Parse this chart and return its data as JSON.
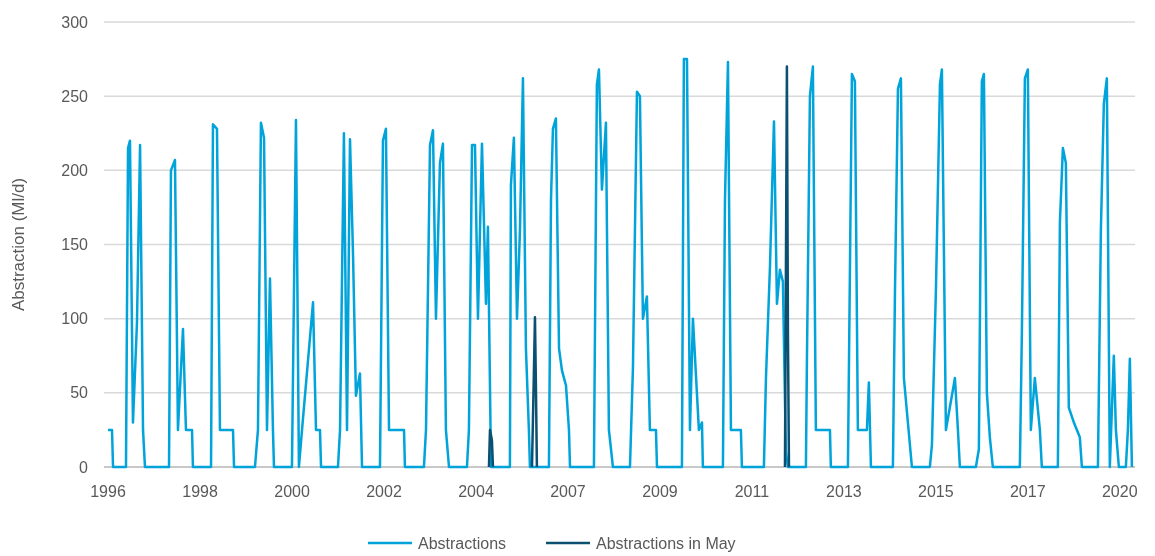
{
  "chart_data": {
    "type": "line",
    "ylabel": "Abstraction (Ml/d)",
    "ylim": [
      0,
      300
    ],
    "yticks": [
      0,
      50,
      100,
      150,
      200,
      250,
      300
    ],
    "xlim": [
      "1995-11-27",
      "2020-07-25"
    ],
    "xticks": [
      {
        "value": "1996-01-01",
        "label": "1996"
      },
      {
        "value": "1998-03-15",
        "label": "1998"
      },
      {
        "value": "2000-05-27",
        "label": "2000"
      },
      {
        "value": "2002-08-08",
        "label": "2002"
      },
      {
        "value": "2004-10-20",
        "label": "2004"
      },
      {
        "value": "2007-01-01",
        "label": "2007"
      },
      {
        "value": "2009-03-15",
        "label": "2009"
      },
      {
        "value": "2011-05-27",
        "label": "2011"
      },
      {
        "value": "2013-08-08",
        "label": "2013"
      },
      {
        "value": "2015-10-20",
        "label": "2015"
      },
      {
        "value": "2017-12-31",
        "label": "2017"
      },
      {
        "value": "2020-03-14",
        "label": "2020"
      }
    ],
    "grid": "y",
    "legend": "bottom",
    "line_style": "solid",
    "marker": "none",
    "series": [
      {
        "name": "Abstractions",
        "color": "#00a3da",
        "x": [
          "1996-01-01",
          "1996-02-05",
          "1996-02-14",
          "1996-06-06",
          "1996-06-24",
          "1996-07-11",
          "1996-08-06",
          "1996-09-10",
          "1996-10-07",
          "1996-11-02",
          "1996-11-19",
          "1997-06-17",
          "1997-07-04",
          "1997-08-08",
          "1997-09-03",
          "1997-10-17",
          "1997-11-12",
          "1998-01-04",
          "1998-01-12",
          "1998-06-19",
          "1998-07-06",
          "1998-08-10",
          "1998-09-05",
          "1998-12-28",
          "1999-01-06",
          "1999-07-08",
          "1999-08-03",
          "1999-08-29",
          "1999-09-25",
          "1999-10-21",
          "1999-11-16",
          "1999-12-12",
          "1999-12-21",
          "2000-05-26",
          "2000-06-30",
          "2000-07-26",
          "2000-08-22",
          "2000-11-26",
          "2000-12-22",
          "2001-01-26",
          "2001-02-04",
          "2001-07-02",
          "2001-07-20",
          "2001-08-23",
          "2001-09-19",
          "2001-10-15",
          "2001-11-10",
          "2001-12-06",
          "2002-01-10",
          "2002-01-28",
          "2002-07-04",
          "2002-07-30",
          "2002-08-25",
          "2002-09-21",
          "2003-01-30",
          "2003-02-07",
          "2003-07-23",
          "2003-08-10",
          "2003-09-14",
          "2003-10-10",
          "2003-11-05",
          "2003-12-10",
          "2004-01-05",
          "2004-01-31",
          "2004-02-27",
          "2004-08-02",
          "2004-08-19",
          "2004-09-15",
          "2004-10-11",
          "2004-11-06",
          "2004-12-11",
          "2005-01-15",
          "2005-02-01",
          "2005-02-28",
          "2005-08-12",
          "2005-08-21",
          "2005-09-16",
          "2005-10-13",
          "2005-11-08",
          "2005-12-04",
          "2005-12-30",
          "2006-01-25",
          "2006-02-03",
          "2006-07-19",
          "2006-08-06",
          "2006-08-23",
          "2006-09-18",
          "2006-10-15",
          "2006-11-10",
          "2006-12-15",
          "2007-01-10",
          "2007-01-19",
          "2007-08-16",
          "2007-09-11",
          "2007-09-29",
          "2007-10-25",
          "2007-11-29",
          "2007-12-25",
          "2008-01-29",
          "2008-06-26",
          "2008-07-22",
          "2008-08-26",
          "2008-09-21",
          "2008-10-17",
          "2008-11-21",
          "2008-12-17",
          "2009-02-08",
          "2009-02-17",
          "2009-09-23",
          "2009-10-10",
          "2009-11-06",
          "2009-12-02",
          "2009-12-28",
          "2010-02-18",
          "2010-03-17",
          "2010-03-25",
          "2010-09-16",
          "2010-10-04",
          "2010-10-30",
          "2010-11-25",
          "2011-02-20",
          "2011-03-01",
          "2011-09-09",
          "2011-09-27",
          "2011-11-01",
          "2011-12-06",
          "2012-01-01",
          "2012-01-27",
          "2012-02-22",
          "2012-03-19",
          "2012-04-06",
          "2012-09-10",
          "2012-09-19",
          "2012-10-15",
          "2012-11-10",
          "2012-12-06",
          "2013-04-08",
          "2013-04-16",
          "2013-09-12",
          "2013-10-17",
          "2013-11-12",
          "2013-12-08",
          "2014-02-25",
          "2014-03-14",
          "2014-04-01",
          "2014-10-10",
          "2014-10-28",
          "2014-11-23",
          "2014-12-19",
          "2015-01-14",
          "2015-02-18",
          "2015-03-25",
          "2015-08-29",
          "2015-09-16",
          "2015-10-21",
          "2015-11-25",
          "2015-12-12",
          "2016-01-16",
          "2016-04-04",
          "2016-04-30",
          "2016-05-17",
          "2016-10-04",
          "2016-10-30",
          "2016-11-25",
          "2016-12-13",
          "2017-01-08",
          "2017-02-03",
          "2017-03-01",
          "2017-10-23",
          "2017-11-10",
          "2017-12-06",
          "2018-01-01",
          "2018-01-27",
          "2018-03-03",
          "2018-04-16",
          "2018-05-03",
          "2018-09-20",
          "2018-10-08",
          "2018-11-03",
          "2018-11-29",
          "2018-12-25",
          "2019-02-07",
          "2019-03-31",
          "2019-04-18",
          "2019-09-05",
          "2019-10-01",
          "2019-10-27",
          "2019-11-22",
          "2019-12-18",
          "2020-01-22",
          "2020-02-09",
          "2020-03-06",
          "2020-05-06",
          "2020-05-24",
          "2020-06-10",
          "2020-06-28"
        ],
        "values": [
          25,
          25,
          0,
          0,
          215,
          220,
          30,
          97,
          217,
          25,
          0,
          0,
          200,
          207,
          25,
          93,
          25,
          25,
          0,
          0,
          231,
          228,
          25,
          25,
          0,
          0,
          25,
          232,
          222,
          25,
          127,
          25,
          0,
          0,
          234,
          0,
          25,
          111,
          25,
          25,
          0,
          0,
          25,
          225,
          25,
          221,
          145,
          48,
          63,
          0,
          0,
          220,
          228,
          25,
          25,
          0,
          0,
          25,
          217,
          227,
          100,
          205,
          218,
          25,
          0,
          0,
          25,
          217,
          217,
          100,
          218,
          110,
          162,
          0,
          0,
          190,
          222,
          100,
          160,
          262,
          80,
          25,
          0,
          0,
          180,
          228,
          235,
          80,
          65,
          55,
          25,
          0,
          0,
          258,
          268,
          187,
          232,
          25,
          0,
          0,
          67,
          253,
          250,
          100,
          115,
          25,
          25,
          0,
          0,
          275,
          275,
          25,
          100,
          25,
          30,
          0,
          0,
          180,
          273,
          25,
          25,
          0,
          0,
          60,
          135,
          233,
          110,
          133,
          125,
          10,
          0,
          0,
          73,
          250,
          270,
          25,
          25,
          0,
          0,
          265,
          260,
          25,
          25,
          57,
          0,
          0,
          118,
          255,
          262,
          60,
          30,
          0,
          0,
          15,
          120,
          258,
          268,
          25,
          60,
          25,
          0,
          0,
          12,
          260,
          265,
          50,
          20,
          0,
          0,
          92,
          262,
          268,
          25,
          60,
          25,
          0,
          0,
          165,
          215,
          205,
          40,
          30,
          20,
          0,
          0,
          160,
          245,
          262,
          0,
          75,
          25,
          0,
          0,
          25,
          73,
          0
        ]
      },
      {
        "name": "Abstractions in May",
        "color": "#0b4f71",
        "x": [
          "2005-02-10",
          "2005-02-19",
          "2005-03-08",
          "2005-03-17",
          "2005-04-01",
          "2006-02-21",
          "2006-03-10",
          "2006-03-19",
          "2006-03-28",
          "2006-04-05",
          "2006-05-01",
          "2012-03-11",
          "2012-03-28",
          "2012-04-06",
          "2012-04-15"
        ],
        "values": [
          0,
          25,
          18,
          0,
          null,
          0,
          65,
          101,
          50,
          0,
          null,
          0,
          270,
          90,
          0
        ]
      }
    ]
  }
}
